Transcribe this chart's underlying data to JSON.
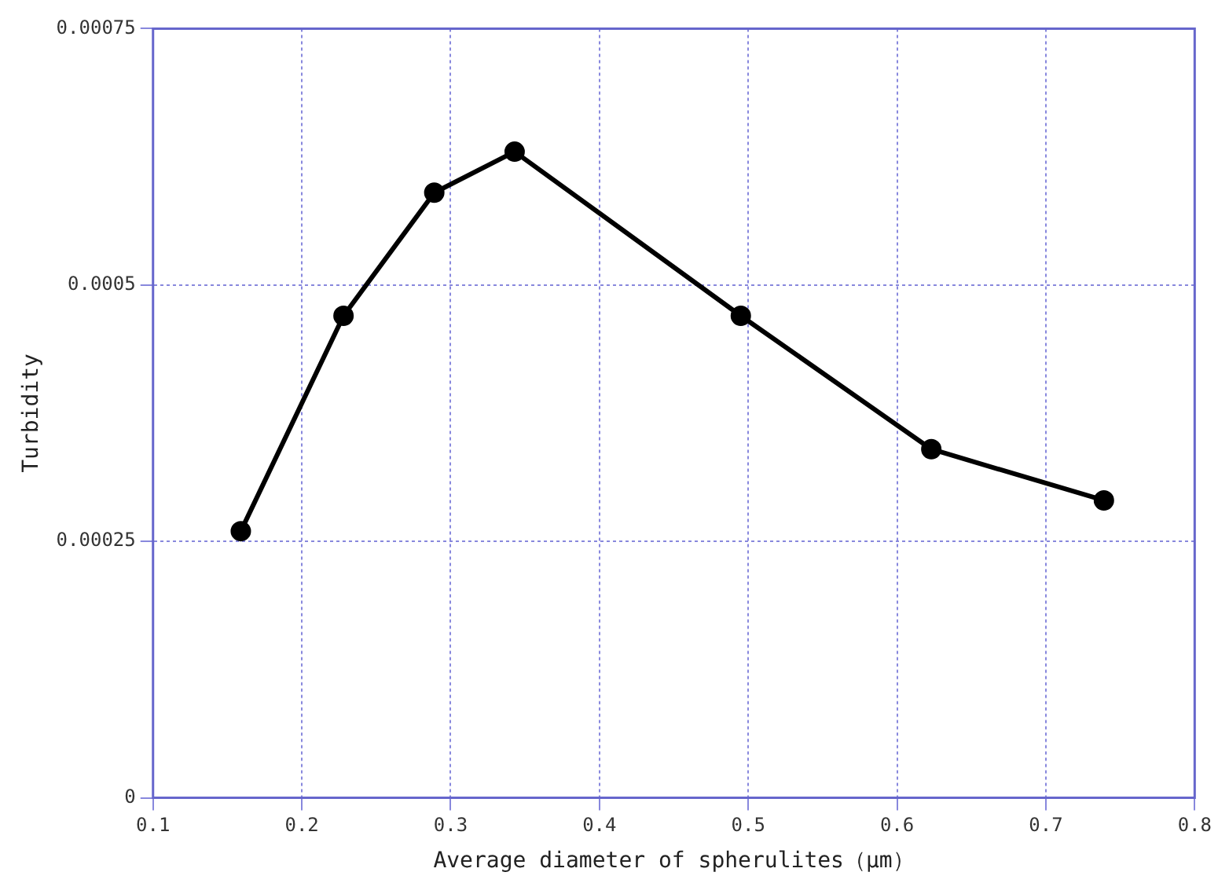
{
  "chart_data": {
    "type": "line",
    "xlabel": "Average diameter of spherulites（μm）",
    "ylabel": "Turbidity",
    "x": [
      0.159,
      0.228,
      0.289,
      0.343,
      0.495,
      0.623,
      0.739
    ],
    "series": [
      {
        "color": "#000000",
        "values": [
          0.00026,
          0.00047,
          0.00059,
          0.00063,
          0.00047,
          0.00034,
          0.00029
        ]
      }
    ],
    "xlim": [
      0.1,
      0.8
    ],
    "xticks": [
      0.1,
      0.2,
      0.3,
      0.4,
      0.5,
      0.6,
      0.7,
      0.8
    ],
    "ylim": [
      0,
      0.00075
    ],
    "yticks": [
      0,
      0.00025,
      0.0005,
      0.00075
    ],
    "grid": true,
    "marker": "circle",
    "line_style": "solid"
  }
}
